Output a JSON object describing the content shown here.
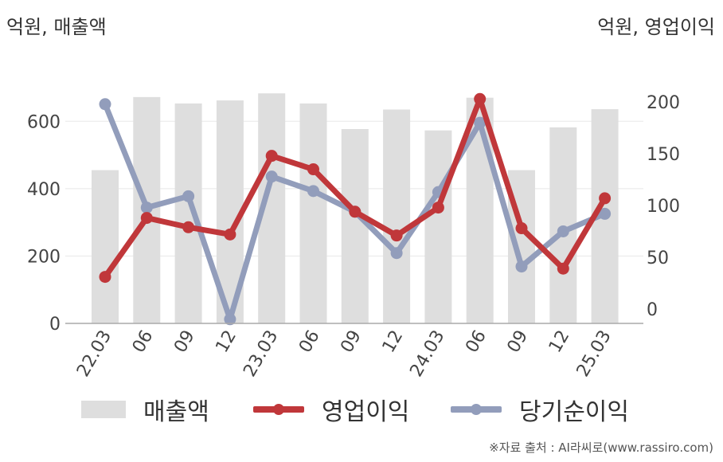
{
  "units": {
    "left": "억원, 매출액",
    "right": "억원, 영업이익"
  },
  "source": "※자료 출처 : AI라씨로(www.rassiro.com)",
  "colors": {
    "revenue": "#dedede",
    "operating_profit": "#c0373a",
    "net_income": "#929dbb",
    "grid": "#e8e8e8",
    "axis": "#aaaaaa"
  },
  "chart_data": {
    "type": "bar+line",
    "categories": [
      "22.03",
      "06",
      "09",
      "12",
      "23.03",
      "06",
      "09",
      "12",
      "24.03",
      "06",
      "09",
      "12",
      "25.03"
    ],
    "left_axis": {
      "ticks": [
        0,
        200,
        400,
        600
      ],
      "range": [
        0,
        700
      ]
    },
    "right_axis": {
      "ticks": [
        0,
        50,
        100,
        150,
        200
      ],
      "range": [
        -14,
        214
      ]
    },
    "series": [
      {
        "name": "매출액",
        "type": "bar",
        "axis": "left",
        "color": "#dedede",
        "values": [
          455,
          672,
          653,
          662,
          683,
          653,
          577,
          635,
          573,
          670,
          455,
          582,
          636
        ]
      },
      {
        "name": "영업이익",
        "type": "line",
        "axis": "right",
        "color": "#c0373a",
        "values": [
          31,
          88,
          79,
          72,
          148,
          135,
          94,
          71,
          98,
          203,
          78,
          39,
          107
        ]
      },
      {
        "name": "당기순이익",
        "type": "line",
        "axis": "right",
        "color": "#929dbb",
        "values": [
          198,
          98,
          109,
          -10,
          128,
          114,
          94,
          54,
          113,
          180,
          41,
          75,
          92
        ]
      }
    ],
    "grid": true,
    "legend": "bottom"
  }
}
